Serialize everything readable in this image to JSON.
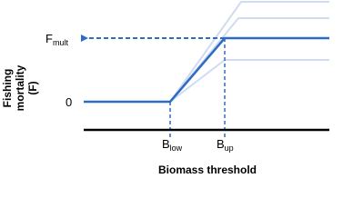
{
  "y_axis_title": [
    "Fishing",
    "mortality",
    "(F)"
  ],
  "x_axis_title": "Biomass threshold",
  "labels": {
    "f_mult": {
      "main": "F",
      "sub": "mult"
    },
    "zero": "0",
    "b_low": {
      "main": "B",
      "sub": "low"
    },
    "b_up": {
      "main": "B",
      "sub": "up"
    }
  }
}
